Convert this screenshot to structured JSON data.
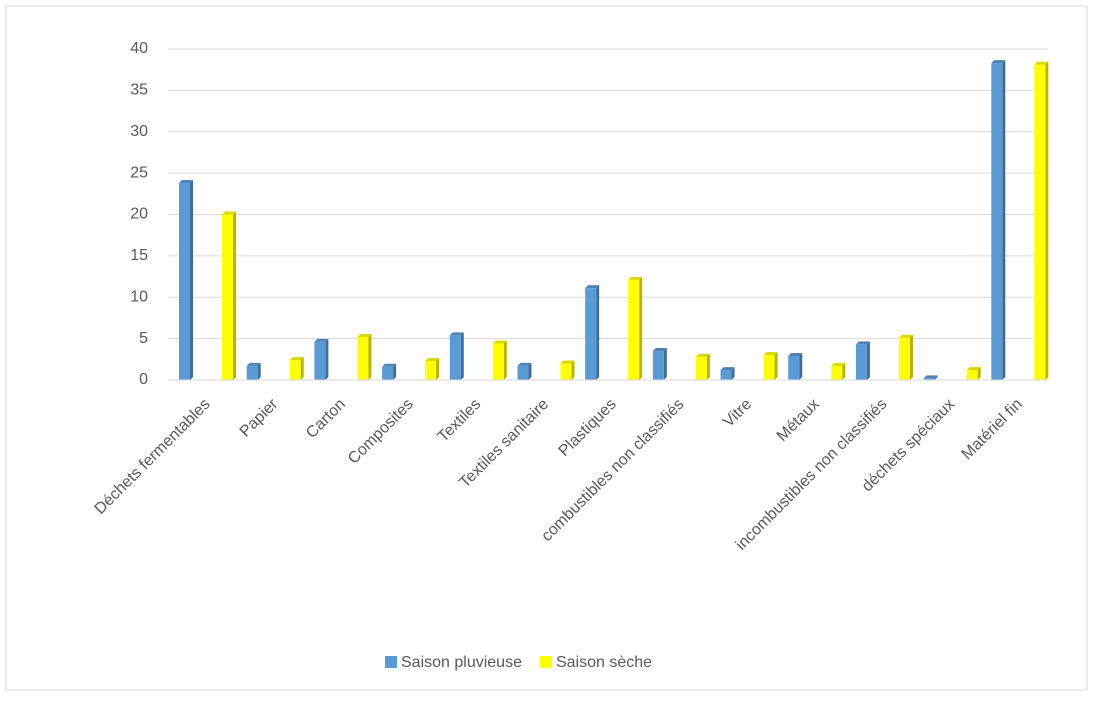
{
  "chart_data": {
    "type": "bar",
    "categories": [
      "Déchets fermentables",
      "Papier",
      "Carton",
      "Composites",
      "Textiles",
      "Textiles sanitaire",
      "Plastiques",
      "combustibles non classifiés",
      "Vitre",
      "Métaux",
      "incombustibles non classifiés",
      "déchets spéciaux",
      "Matériel fin"
    ],
    "series": [
      {
        "name": "Saison pluvieuse",
        "color": "#5b9bd5",
        "values": [
          23.8,
          1.7,
          4.6,
          1.6,
          5.4,
          1.7,
          11.1,
          3.5,
          1.2,
          2.9,
          4.3,
          0.2,
          38.3
        ]
      },
      {
        "name": "Saison sèche",
        "color": "#ffff00",
        "values": [
          20,
          2.4,
          5.2,
          2.3,
          4.4,
          2.0,
          12.1,
          2.8,
          3.0,
          1.7,
          5.1,
          1.2,
          38.1
        ]
      }
    ],
    "ylim": [
      0,
      40
    ],
    "yticks": [
      0,
      5,
      10,
      15,
      20,
      25,
      30,
      35,
      40
    ],
    "grid": true,
    "legend": "bottom"
  }
}
